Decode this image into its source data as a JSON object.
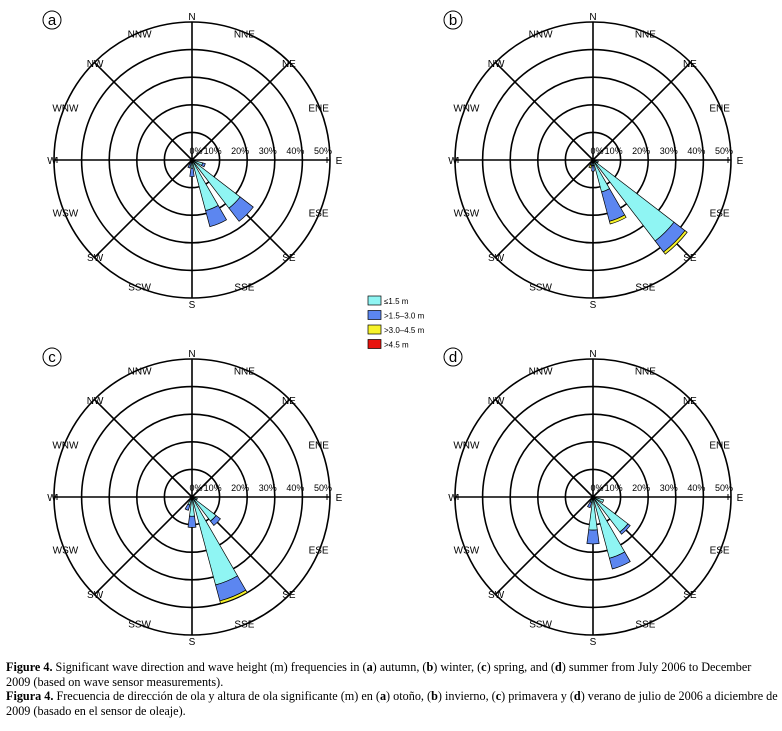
{
  "chart_data": [
    {
      "type": "polar-stacked-bar",
      "panel": "a",
      "directions": [
        "N",
        "NNE",
        "NE",
        "ENE",
        "E",
        "ESE",
        "SE",
        "SSE",
        "S",
        "SSW",
        "SW",
        "WSW",
        "W",
        "WNW",
        "NW",
        "NNW"
      ],
      "ring_labels": [
        "0%",
        "10%",
        "20%",
        "30%",
        "40%",
        "50%"
      ],
      "rlim": [
        0,
        50
      ],
      "series": [
        {
          "name": "≤1.5 m",
          "values": [
            0,
            0,
            0,
            0,
            0,
            4,
            22,
            19,
            3,
            1,
            0,
            0,
            0,
            0,
            0,
            0
          ]
        },
        {
          "name": ">1.5–3.0 m",
          "values": [
            0,
            0,
            0,
            0,
            0,
            1,
            6,
            6,
            3,
            2,
            0,
            0,
            0,
            0,
            0,
            0
          ]
        },
        {
          "name": ">3.0–4.5 m",
          "values": [
            0,
            0,
            0,
            0,
            0,
            0,
            0,
            0,
            0,
            0,
            0,
            0,
            0,
            0,
            0,
            0
          ]
        },
        {
          "name": ">4.5 m",
          "values": [
            0,
            0,
            0,
            0,
            0,
            0,
            0,
            0,
            0,
            0,
            0,
            0,
            0,
            0,
            0,
            0
          ]
        }
      ]
    },
    {
      "type": "polar-stacked-bar",
      "panel": "b",
      "directions": [
        "N",
        "NNE",
        "NE",
        "ENE",
        "E",
        "ESE",
        "SE",
        "SSE",
        "S",
        "SSW",
        "SW",
        "WSW",
        "W",
        "WNW",
        "NW",
        "NNW"
      ],
      "ring_labels": [
        "0%",
        "10%",
        "20%",
        "30%",
        "40%",
        "50%"
      ],
      "rlim": [
        0,
        50
      ],
      "series": [
        {
          "name": "≤1.5 m",
          "values": [
            0,
            0,
            0,
            0,
            0,
            2,
            37,
            12,
            2,
            1,
            0,
            0,
            0,
            0,
            0,
            0
          ]
        },
        {
          "name": ">1.5–3.0 m",
          "values": [
            0,
            0,
            0,
            0,
            0,
            0,
            5,
            11,
            2,
            1,
            0,
            0,
            0,
            0,
            0,
            0
          ]
        },
        {
          "name": ">3.0–4.5 m",
          "values": [
            0,
            0,
            0,
            0,
            0,
            0,
            1,
            1,
            0,
            1,
            0,
            0,
            0,
            0,
            0,
            0
          ]
        },
        {
          "name": ">4.5 m",
          "values": [
            0,
            0,
            0,
            0,
            0,
            0,
            0,
            0,
            0,
            0,
            0,
            0,
            0,
            0,
            0,
            0
          ]
        }
      ]
    },
    {
      "type": "polar-stacked-bar",
      "panel": "c",
      "directions": [
        "N",
        "NNE",
        "NE",
        "ENE",
        "E",
        "ESE",
        "SE",
        "SSE",
        "S",
        "SSW",
        "SW",
        "WSW",
        "W",
        "WNW",
        "NW",
        "NNW"
      ],
      "ring_labels": [
        "0%",
        "10%",
        "20%",
        "30%",
        "40%",
        "50%"
      ],
      "rlim": [
        0,
        50
      ],
      "series": [
        {
          "name": "≤1.5 m",
          "values": [
            0,
            0,
            0,
            0,
            0,
            2,
            11,
            33,
            7,
            3,
            0,
            0,
            0,
            0,
            0,
            0
          ]
        },
        {
          "name": ">1.5–3.0 m",
          "values": [
            0,
            0,
            0,
            0,
            0,
            0,
            2,
            6,
            4,
            2,
            0,
            0,
            0,
            0,
            0,
            0
          ]
        },
        {
          "name": ">3.0–4.5 m",
          "values": [
            0,
            0,
            0,
            0,
            0,
            0,
            0,
            1,
            0,
            0,
            0,
            0,
            0,
            0,
            0,
            0
          ]
        },
        {
          "name": ">4.5 m",
          "values": [
            0,
            0,
            0,
            0,
            0,
            0,
            0,
            0,
            0,
            0,
            0,
            0,
            0,
            0,
            0,
            0
          ]
        }
      ]
    },
    {
      "type": "polar-stacked-bar",
      "panel": "d",
      "directions": [
        "N",
        "NNE",
        "NE",
        "ENE",
        "E",
        "ESE",
        "SE",
        "SSE",
        "S",
        "SSW",
        "SW",
        "WSW",
        "W",
        "WNW",
        "NW",
        "NNW"
      ],
      "ring_labels": [
        "0%",
        "10%",
        "20%",
        "30%",
        "40%",
        "50%"
      ],
      "rlim": [
        0,
        50
      ],
      "series": [
        {
          "name": "≤1.5 m",
          "values": [
            0,
            0,
            0,
            0,
            0,
            4,
            16,
            23,
            12,
            2,
            0,
            0,
            0,
            0,
            0,
            0
          ]
        },
        {
          "name": ">1.5–3.0 m",
          "values": [
            0,
            0,
            0,
            0,
            0,
            0,
            1,
            4,
            5,
            2,
            0,
            0,
            0,
            0,
            0,
            0
          ]
        },
        {
          "name": ">3.0–4.5 m",
          "values": [
            0,
            0,
            0,
            0,
            0,
            0,
            0,
            0,
            0,
            0,
            0,
            0,
            0,
            0,
            0,
            0
          ]
        },
        {
          "name": ">4.5 m",
          "values": [
            0,
            0,
            0,
            0,
            0,
            0,
            0,
            0,
            0,
            0,
            0,
            0,
            0,
            0,
            0,
            0
          ]
        }
      ]
    }
  ],
  "legend": {
    "items": [
      {
        "label": "≤1.5 m",
        "color": "#8ff5f3"
      },
      {
        "label": ">1.5–3.0 m",
        "color": "#5c86f0"
      },
      {
        "label": ">3.0–4.5 m",
        "color": "#f7f32a"
      },
      {
        "label": ">4.5 m",
        "color": "#e8140e"
      }
    ]
  },
  "caption": {
    "en_label": "Figure 4.",
    "en_parts": [
      " Significant wave direction and wave height (m) frequencies in (",
      "a",
      ") autumn, (",
      "b",
      ") winter, (",
      "c",
      ") spring, and (",
      "d",
      ") summer from July 2006 to December 2009 (based on wave sensor measurements)."
    ],
    "es_label": "Figura 4.",
    "es_parts": [
      " Frecuencia de dirección de ola y altura de ola significante (m) en (",
      "a",
      ") otoño, (",
      "b",
      ") invierno, (",
      "c",
      ") primavera y (",
      "d",
      ") verano de julio de 2006 a diciembre de 2009 (basado en el sensor de oleaje)."
    ]
  }
}
